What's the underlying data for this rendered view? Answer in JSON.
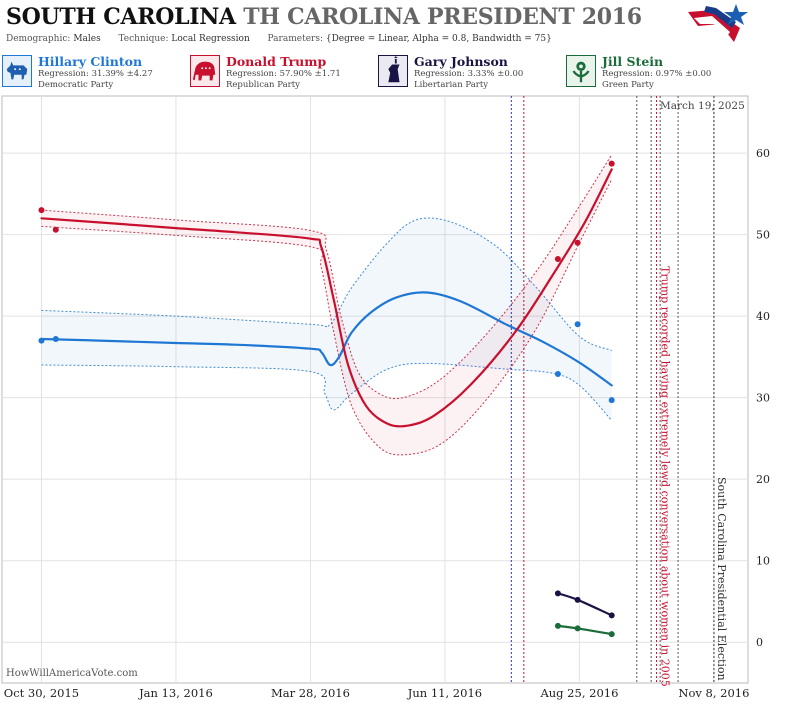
{
  "header": {
    "title_bold": "SOUTH CAROLINA",
    "title_rest": "TH CAROLINA PRESIDENT 2016",
    "demographic_label": "Demographic:",
    "demographic_value": "Males",
    "technique_label": "Technique:",
    "technique_value": "Local Regression",
    "parameters_label": "Parameters:",
    "parameters_value": "{Degree = Linear, Alpha = 0.8, Bandwidth = 75}"
  },
  "candidates": [
    {
      "name": "Hillary Clinton",
      "regression": "Regression: 31.39% ±4.27",
      "party": "Democratic Party",
      "color": "#1f77d4",
      "bg": "#e6f0fb",
      "icon": "donkey-icon"
    },
    {
      "name": "Donald Trump",
      "regression": "Regression: 57.90% ±1.71",
      "party": "Republican Party",
      "color": "#c8102e",
      "bg": "#fbe8eb",
      "icon": "elephant-icon"
    },
    {
      "name": "Gary Johnson",
      "regression": "Regression: 3.33% ±0.00",
      "party": "Libertarian Party",
      "color": "#1a1446",
      "bg": "#ebeaf2",
      "icon": "liberty-torch-icon"
    },
    {
      "name": "Jill Stein",
      "regression": "Regression: 0.97% ±0.00",
      "party": "Green Party",
      "color": "#1c6b3a",
      "bg": "#e8f3ec",
      "icon": "green-flower-icon"
    }
  ],
  "date_stamp": "March 19, 2025",
  "watermark": "HowWillAmericaVote.com",
  "chart_data": {
    "type": "line",
    "x_type": "date",
    "xlim": [
      "2015-10-08",
      "2016-11-27"
    ],
    "ylim": [
      -5,
      67
    ],
    "x_ticks": [
      {
        "date": "2015-10-30",
        "label": "Oct 30, 2015"
      },
      {
        "date": "2016-01-13",
        "label": "Jan 13, 2016"
      },
      {
        "date": "2016-03-28",
        "label": "Mar 28, 2016"
      },
      {
        "date": "2016-06-11",
        "label": "Jun 11, 2016"
      },
      {
        "date": "2016-08-25",
        "label": "Aug 25, 2016"
      },
      {
        "date": "2016-11-08",
        "label": "Nov 8, 2016"
      }
    ],
    "y_ticks": [
      0,
      10,
      20,
      30,
      40,
      50,
      60
    ],
    "grid": true,
    "series": [
      {
        "name": "Hillary Clinton",
        "color": "#1f77d4",
        "points": [
          {
            "date": "2015-10-30",
            "y": 37.0
          },
          {
            "date": "2015-11-07",
            "y": 37.2
          },
          {
            "date": "2016-08-13",
            "y": 32.9
          },
          {
            "date": "2016-08-24",
            "y": 39.0
          },
          {
            "date": "2016-09-12",
            "y": 29.7
          }
        ],
        "trend": [
          {
            "date": "2015-10-30",
            "y": 37.2
          },
          {
            "date": "2015-12-01",
            "y": 37.0
          },
          {
            "date": "2016-01-13",
            "y": 36.7
          },
          {
            "date": "2016-02-15",
            "y": 36.5
          },
          {
            "date": "2016-03-28",
            "y": 36.0
          },
          {
            "date": "2016-04-03",
            "y": 35.6
          },
          {
            "date": "2016-04-08",
            "y": 34.0
          },
          {
            "date": "2016-04-13",
            "y": 35.0
          },
          {
            "date": "2016-04-20",
            "y": 38.0
          },
          {
            "date": "2016-05-01",
            "y": 40.5
          },
          {
            "date": "2016-05-15",
            "y": 42.3
          },
          {
            "date": "2016-06-01",
            "y": 42.9
          },
          {
            "date": "2016-06-20",
            "y": 41.8
          },
          {
            "date": "2016-07-15",
            "y": 39.0
          },
          {
            "date": "2016-08-05",
            "y": 36.8
          },
          {
            "date": "2016-08-25",
            "y": 34.3
          },
          {
            "date": "2016-09-12",
            "y": 31.5
          }
        ],
        "band_upper": [
          {
            "date": "2015-10-30",
            "y": 40.7
          },
          {
            "date": "2016-01-13",
            "y": 40.0
          },
          {
            "date": "2016-03-28",
            "y": 39.0
          },
          {
            "date": "2016-04-08",
            "y": 39.0
          },
          {
            "date": "2016-04-20",
            "y": 43.5
          },
          {
            "date": "2016-05-10",
            "y": 49.0
          },
          {
            "date": "2016-05-26",
            "y": 51.8
          },
          {
            "date": "2016-06-15",
            "y": 51.5
          },
          {
            "date": "2016-07-10",
            "y": 48.5
          },
          {
            "date": "2016-08-01",
            "y": 43.5
          },
          {
            "date": "2016-08-25",
            "y": 37.5
          },
          {
            "date": "2016-09-12",
            "y": 35.8
          }
        ],
        "band_lower": [
          {
            "date": "2015-10-30",
            "y": 34.0
          },
          {
            "date": "2016-01-13",
            "y": 33.8
          },
          {
            "date": "2016-03-28",
            "y": 33.2
          },
          {
            "date": "2016-04-05",
            "y": 30.5
          },
          {
            "date": "2016-04-10",
            "y": 28.5
          },
          {
            "date": "2016-04-20",
            "y": 30.5
          },
          {
            "date": "2016-05-10",
            "y": 33.5
          },
          {
            "date": "2016-06-01",
            "y": 34.2
          },
          {
            "date": "2016-07-15",
            "y": 33.5
          },
          {
            "date": "2016-08-10",
            "y": 33.0
          },
          {
            "date": "2016-08-25",
            "y": 31.5
          },
          {
            "date": "2016-09-12",
            "y": 27.2
          }
        ]
      },
      {
        "name": "Donald Trump",
        "color": "#c8102e",
        "points": [
          {
            "date": "2015-10-30",
            "y": 53.0
          },
          {
            "date": "2015-11-07",
            "y": 50.6
          },
          {
            "date": "2016-08-13",
            "y": 47.0
          },
          {
            "date": "2016-08-24",
            "y": 49.0
          },
          {
            "date": "2016-09-12",
            "y": 58.7
          }
        ],
        "trend": [
          {
            "date": "2015-10-30",
            "y": 52.0
          },
          {
            "date": "2015-12-01",
            "y": 51.5
          },
          {
            "date": "2016-01-13",
            "y": 50.8
          },
          {
            "date": "2016-02-15",
            "y": 50.3
          },
          {
            "date": "2016-03-28",
            "y": 49.5
          },
          {
            "date": "2016-04-03",
            "y": 48.5
          },
          {
            "date": "2016-04-10",
            "y": 42.0
          },
          {
            "date": "2016-04-18",
            "y": 34.0
          },
          {
            "date": "2016-04-28",
            "y": 29.0
          },
          {
            "date": "2016-05-10",
            "y": 26.8
          },
          {
            "date": "2016-05-22",
            "y": 26.6
          },
          {
            "date": "2016-06-05",
            "y": 27.8
          },
          {
            "date": "2016-06-25",
            "y": 31.5
          },
          {
            "date": "2016-07-20",
            "y": 38.0
          },
          {
            "date": "2016-08-10",
            "y": 45.0
          },
          {
            "date": "2016-08-28",
            "y": 51.5
          },
          {
            "date": "2016-09-12",
            "y": 58.0
          }
        ],
        "band_upper": [
          {
            "date": "2015-10-30",
            "y": 53.0
          },
          {
            "date": "2016-01-13",
            "y": 51.8
          },
          {
            "date": "2016-03-28",
            "y": 50.5
          },
          {
            "date": "2016-04-06",
            "y": 48.0
          },
          {
            "date": "2016-04-14",
            "y": 40.0
          },
          {
            "date": "2016-04-24",
            "y": 33.0
          },
          {
            "date": "2016-05-08",
            "y": 30.2
          },
          {
            "date": "2016-05-22",
            "y": 30.2
          },
          {
            "date": "2016-06-10",
            "y": 32.5
          },
          {
            "date": "2016-07-05",
            "y": 38.0
          },
          {
            "date": "2016-08-01",
            "y": 45.5
          },
          {
            "date": "2016-08-25",
            "y": 53.5
          },
          {
            "date": "2016-09-12",
            "y": 59.8
          }
        ],
        "band_lower": [
          {
            "date": "2015-10-30",
            "y": 51.0
          },
          {
            "date": "2016-01-13",
            "y": 49.9
          },
          {
            "date": "2016-03-28",
            "y": 48.5
          },
          {
            "date": "2016-04-03",
            "y": 46.0
          },
          {
            "date": "2016-04-10",
            "y": 38.0
          },
          {
            "date": "2016-04-20",
            "y": 29.0
          },
          {
            "date": "2016-05-05",
            "y": 24.0
          },
          {
            "date": "2016-05-20",
            "y": 23.0
          },
          {
            "date": "2016-06-10",
            "y": 24.5
          },
          {
            "date": "2016-07-05",
            "y": 30.0
          },
          {
            "date": "2016-08-01",
            "y": 38.5
          },
          {
            "date": "2016-08-25",
            "y": 49.0
          },
          {
            "date": "2016-09-12",
            "y": 56.8
          }
        ]
      },
      {
        "name": "Gary Johnson",
        "color": "#1a1446",
        "points": [
          {
            "date": "2016-08-13",
            "y": 6.0
          },
          {
            "date": "2016-08-24",
            "y": 5.2
          },
          {
            "date": "2016-09-12",
            "y": 3.3
          }
        ],
        "trend": [
          {
            "date": "2016-08-13",
            "y": 6.0
          },
          {
            "date": "2016-08-24",
            "y": 5.2
          },
          {
            "date": "2016-09-12",
            "y": 3.3
          }
        ]
      },
      {
        "name": "Jill Stein",
        "color": "#1c6b3a",
        "points": [
          {
            "date": "2016-08-13",
            "y": 2.0
          },
          {
            "date": "2016-08-24",
            "y": 1.7
          },
          {
            "date": "2016-09-12",
            "y": 1.0
          }
        ],
        "trend": [
          {
            "date": "2016-08-13",
            "y": 2.0
          },
          {
            "date": "2016-08-24",
            "y": 1.7
          },
          {
            "date": "2016-09-12",
            "y": 1.0
          }
        ]
      }
    ],
    "vlines": [
      {
        "date": "2016-07-18",
        "color": "#2233aa",
        "style": "dotted"
      },
      {
        "date": "2016-07-25",
        "color": "#c8102e",
        "style": "dotted"
      },
      {
        "date": "2016-09-26",
        "color": "#555555",
        "style": "dotted"
      },
      {
        "date": "2016-10-04",
        "color": "#555555",
        "style": "dotted"
      },
      {
        "date": "2016-10-07",
        "color": "#c8102e",
        "style": "dotted"
      },
      {
        "date": "2016-10-09",
        "color": "#555555",
        "style": "dotted"
      },
      {
        "date": "2016-10-19",
        "color": "#555555",
        "style": "dotted"
      },
      {
        "date": "2016-11-08",
        "color": "#333333",
        "style": "dotted"
      }
    ],
    "annotations": [
      {
        "text": "Trump recorded having extremely lewd conversation about women in 2005",
        "date": "2016-10-07",
        "color": "#c8102e"
      },
      {
        "text": "South Carolina Presidential Election",
        "date": "2016-11-08",
        "color": "#333333"
      }
    ]
  }
}
